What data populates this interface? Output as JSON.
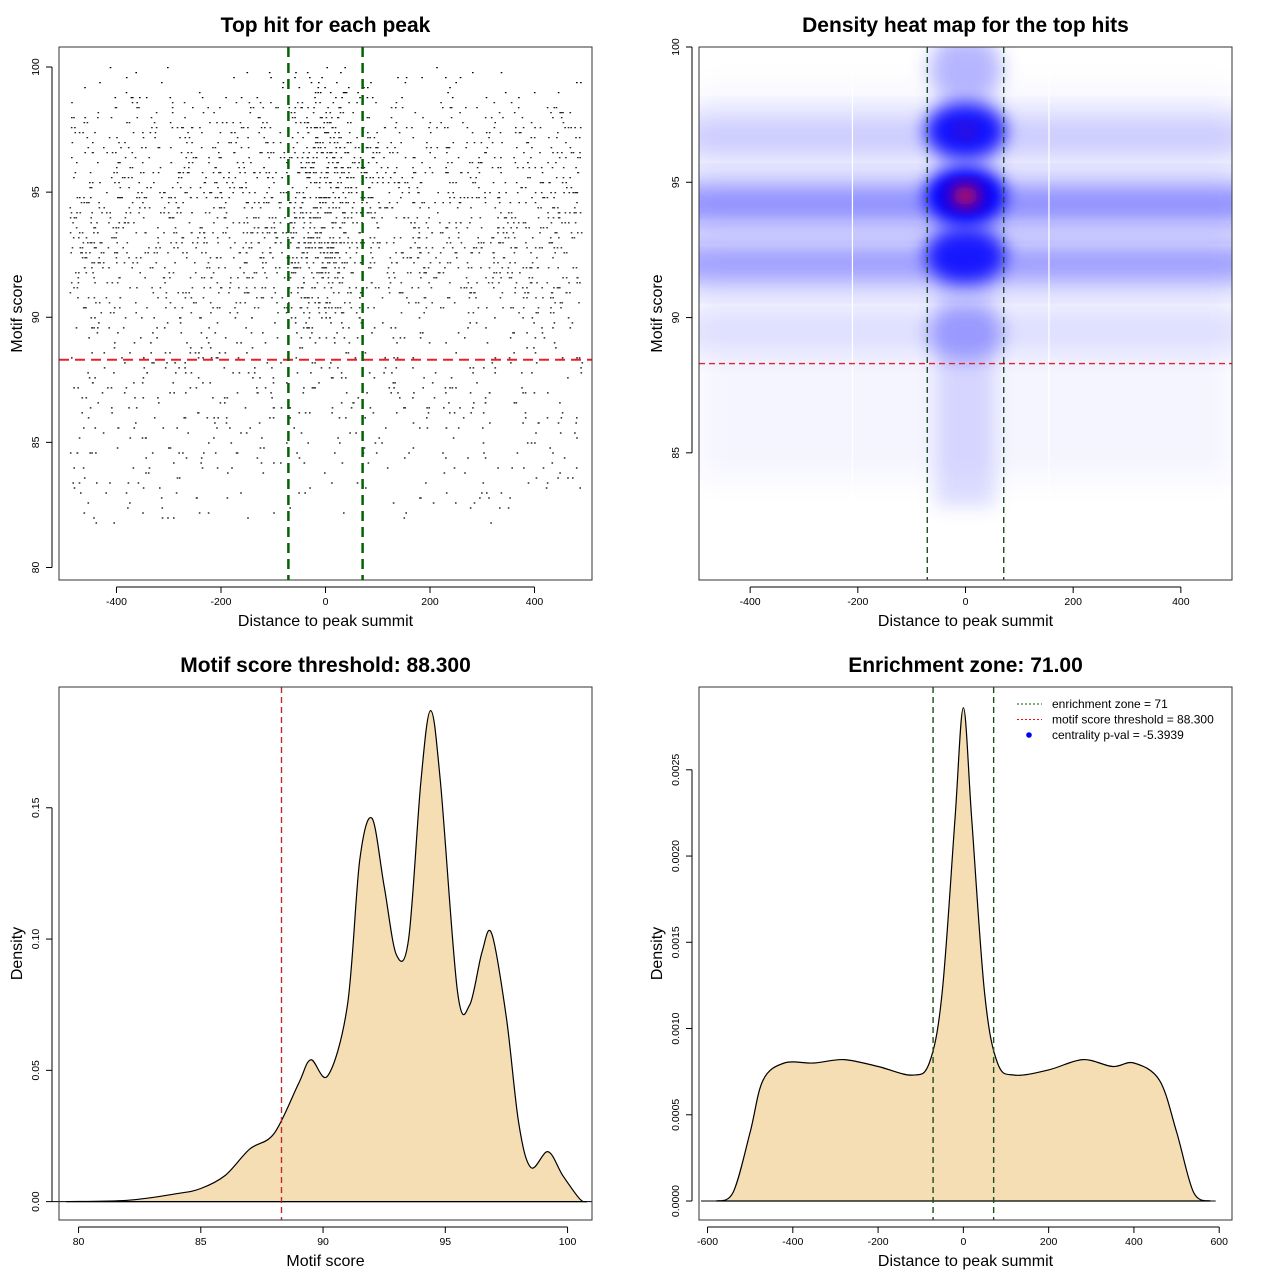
{
  "chart_data": [
    {
      "type": "scatter",
      "title": "Top hit for each peak",
      "xlabel": "Distance to peak summit",
      "ylabel": "Motif score",
      "xlim": [
        -510,
        510
      ],
      "ylim": [
        79.5,
        100.8
      ],
      "xticks": [
        -400,
        -200,
        0,
        200,
        400
      ],
      "yticks": [
        80,
        85,
        90,
        95,
        100
      ],
      "points_summary": {
        "n": 9000,
        "x_range": [
          -490,
          490
        ],
        "score_modes": [
          92.0,
          94.3,
          96.8
        ],
        "central_cluster_x": 0,
        "score_min": 81.5,
        "score_max": 100
      },
      "hlines": [
        {
          "y": 88.3,
          "color": "#e8202a",
          "label": "motif score threshold"
        }
      ],
      "vlines": [
        {
          "x": -71,
          "color": "#006400"
        },
        {
          "x": 71,
          "color": "#006400"
        }
      ]
    },
    {
      "type": "heatmap",
      "title": "Density heat map for the top hits",
      "xlabel": "Distance to peak summit",
      "ylabel": "Motif score",
      "xlim": [
        -495,
        495
      ],
      "ylim": [
        80.3,
        100
      ],
      "xticks": [
        -400,
        -200,
        0,
        200,
        400
      ],
      "yticks": [
        85,
        90,
        95,
        100
      ],
      "hotspots": [
        {
          "x": 0,
          "y": 94.5,
          "intensity": 1.0
        },
        {
          "x": 0,
          "y": 96.9,
          "intensity": 0.75
        },
        {
          "x": 0,
          "y": 92.3,
          "intensity": 0.7
        },
        {
          "x": 0,
          "y": 99.2,
          "intensity": 0.15
        },
        {
          "x": 0,
          "y": 89.4,
          "intensity": 0.18
        }
      ],
      "bands": [
        {
          "y": 94.2,
          "intensity": 0.45
        },
        {
          "y": 92.0,
          "intensity": 0.38
        },
        {
          "y": 96.7,
          "intensity": 0.18
        },
        {
          "y": 89.5,
          "intensity": 0.1
        }
      ],
      "hlines": [
        {
          "y": 88.3,
          "color": "#e8202a"
        }
      ],
      "vlines": [
        {
          "x": -71,
          "color": "#1d4d1d"
        },
        {
          "x": 71,
          "color": "#1d4d1d"
        }
      ]
    },
    {
      "type": "area",
      "title": "Motif score threshold: 88.300",
      "xlabel": "Motif score",
      "ylabel": "Density",
      "xlim": [
        79.2,
        101
      ],
      "ylim": [
        -0.007,
        0.196
      ],
      "xticks": [
        80,
        85,
        90,
        95,
        100
      ],
      "yticks": [
        "0.00",
        "0.05",
        "0.10",
        "0.15"
      ],
      "x": [
        79.5,
        82,
        84,
        85,
        86,
        87,
        88,
        89,
        89.5,
        90.2,
        91,
        91.5,
        92,
        92.5,
        93,
        93.5,
        94,
        94.4,
        94.8,
        95.5,
        96,
        96.5,
        96.9,
        97.5,
        98,
        98.5,
        99.2,
        99.8,
        100.5,
        100.8
      ],
      "y": [
        0,
        0.0005,
        0.003,
        0.005,
        0.01,
        0.02,
        0.026,
        0.045,
        0.054,
        0.048,
        0.075,
        0.13,
        0.146,
        0.12,
        0.094,
        0.1,
        0.16,
        0.187,
        0.16,
        0.08,
        0.075,
        0.095,
        0.102,
        0.07,
        0.03,
        0.013,
        0.019,
        0.01,
        0.001,
        0
      ],
      "fill": "#f5deb3",
      "vlines": [
        {
          "x": 88.3,
          "color": "#c0282d"
        }
      ]
    },
    {
      "type": "area",
      "title": "Enrichment zone: 71.00",
      "xlabel": "Distance to peak summit",
      "ylabel": "Density",
      "xlim": [
        -620,
        630
      ],
      "ylim": [
        -0.00011,
        0.00298
      ],
      "xticks": [
        -600,
        -400,
        -200,
        0,
        200,
        400,
        600
      ],
      "yticks": [
        "0.0000",
        "0.0005",
        "0.0010",
        "0.0015",
        "0.0020",
        "0.0025"
      ],
      "x": [
        -580,
        -540,
        -500,
        -470,
        -420,
        -350,
        -280,
        -200,
        -120,
        -80,
        -50,
        -20,
        0,
        20,
        50,
        80,
        120,
        200,
        280,
        350,
        400,
        460,
        500,
        540,
        580
      ],
      "y": [
        0,
        5e-05,
        0.0004,
        0.0007,
        0.0008,
        0.0008,
        0.00082,
        0.00078,
        0.00073,
        0.0008,
        0.0012,
        0.0022,
        0.00286,
        0.0022,
        0.0012,
        0.0008,
        0.00073,
        0.00076,
        0.00082,
        0.00078,
        0.0008,
        0.0007,
        0.0004,
        5e-05,
        0
      ],
      "fill": "#f5deb3",
      "vlines": [
        {
          "x": -71,
          "color": "#1d4d1d"
        },
        {
          "x": 71,
          "color": "#1d4d1d"
        }
      ],
      "legend": {
        "placement": "top-right",
        "entries": [
          {
            "label": "enrichment zone = 71",
            "color": "#006400",
            "style": "dotted"
          },
          {
            "label": "motif score threshold = 88.300",
            "color": "#ff0000",
            "style": "dotted"
          },
          {
            "label": "centrality p-val = -5.3939",
            "color": "#0000ff",
            "style": "point"
          }
        ]
      }
    }
  ]
}
